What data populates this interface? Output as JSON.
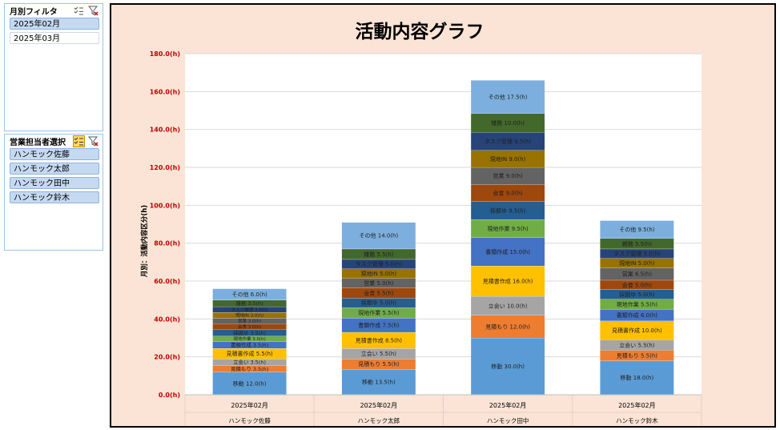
{
  "slicers": {
    "month": {
      "title": "月別フィルタ",
      "items": [
        {
          "label": "2025年02月",
          "selected": true
        },
        {
          "label": "2025年03月",
          "selected": false
        }
      ]
    },
    "rep": {
      "title": "営業担当者選択",
      "items": [
        {
          "label": "ハンモック佐藤",
          "selected": true
        },
        {
          "label": "ハンモック太郎",
          "selected": true
        },
        {
          "label": "ハンモック田中",
          "selected": true
        },
        {
          "label": "ハンモック鈴木",
          "selected": true
        }
      ]
    }
  },
  "chart_data": {
    "type": "bar",
    "stacked": true,
    "title": "活動内容グラフ",
    "ylabel": "月別：活動内容区分(h)",
    "xlabel": "",
    "ylim": [
      0,
      180
    ],
    "yticks": [
      0,
      20,
      40,
      60,
      80,
      100,
      120,
      140,
      160,
      180
    ],
    "ytick_format": "{v}(h)",
    "grid": true,
    "legend": "none",
    "categories": [
      {
        "month": "2025年02月",
        "rep": "ハンモック佐藤"
      },
      {
        "month": "2025年02月",
        "rep": "ハンモック太郎"
      },
      {
        "month": "2025年02月",
        "rep": "ハンモック田中"
      },
      {
        "month": "2025年02月",
        "rep": "ハンモック鈴木"
      }
    ],
    "series": [
      {
        "name": "移動",
        "color": "#5b9bd5",
        "values": [
          12.0,
          13.5,
          30.0,
          18.0
        ]
      },
      {
        "name": "見積もり",
        "color": "#ed7d31",
        "values": [
          3.5,
          5.5,
          12.0,
          5.5
        ]
      },
      {
        "name": "立会い",
        "color": "#a5a5a5",
        "values": [
          3.5,
          5.5,
          10.0,
          5.5
        ]
      },
      {
        "name": "見積書作成",
        "color": "#ffc000",
        "values": [
          5.5,
          8.5,
          16.0,
          10.0
        ]
      },
      {
        "name": "書類作成",
        "color": "#4472c4",
        "values": [
          3.5,
          7.5,
          15.0,
          6.0
        ]
      },
      {
        "name": "現地作業",
        "color": "#70ad47",
        "values": [
          3.0,
          5.5,
          9.5,
          5.5
        ]
      },
      {
        "name": "採掘ゆ",
        "color": "#255e91",
        "values": [
          3.5,
          5.0,
          9.5,
          5.0
        ]
      },
      {
        "name": "会食",
        "color": "#9e480e",
        "values": [
          3.0,
          5.5,
          9.0,
          5.0
        ]
      },
      {
        "name": "営業",
        "color": "#636363",
        "values": [
          3.0,
          5.0,
          9.0,
          6.5
        ]
      },
      {
        "name": "現地IN",
        "color": "#997300",
        "values": [
          3.0,
          5.0,
          9.0,
          5.0
        ]
      },
      {
        "name": "タスク管理",
        "color": "#264478",
        "values": [
          3.0,
          5.0,
          9.5,
          5.0
        ]
      },
      {
        "name": "雑務",
        "color": "#43682b",
        "values": [
          3.5,
          5.5,
          10.0,
          5.5
        ]
      },
      {
        "name": "その他",
        "color": "#7cafdd",
        "values": [
          6.0,
          14.0,
          17.5,
          9.5
        ]
      }
    ]
  },
  "colors": {
    "chart_bg": "#fbe4d6",
    "plot_bg": "#ffffff",
    "tick_label": "#c00000",
    "gridline": "#d9d9d9"
  }
}
